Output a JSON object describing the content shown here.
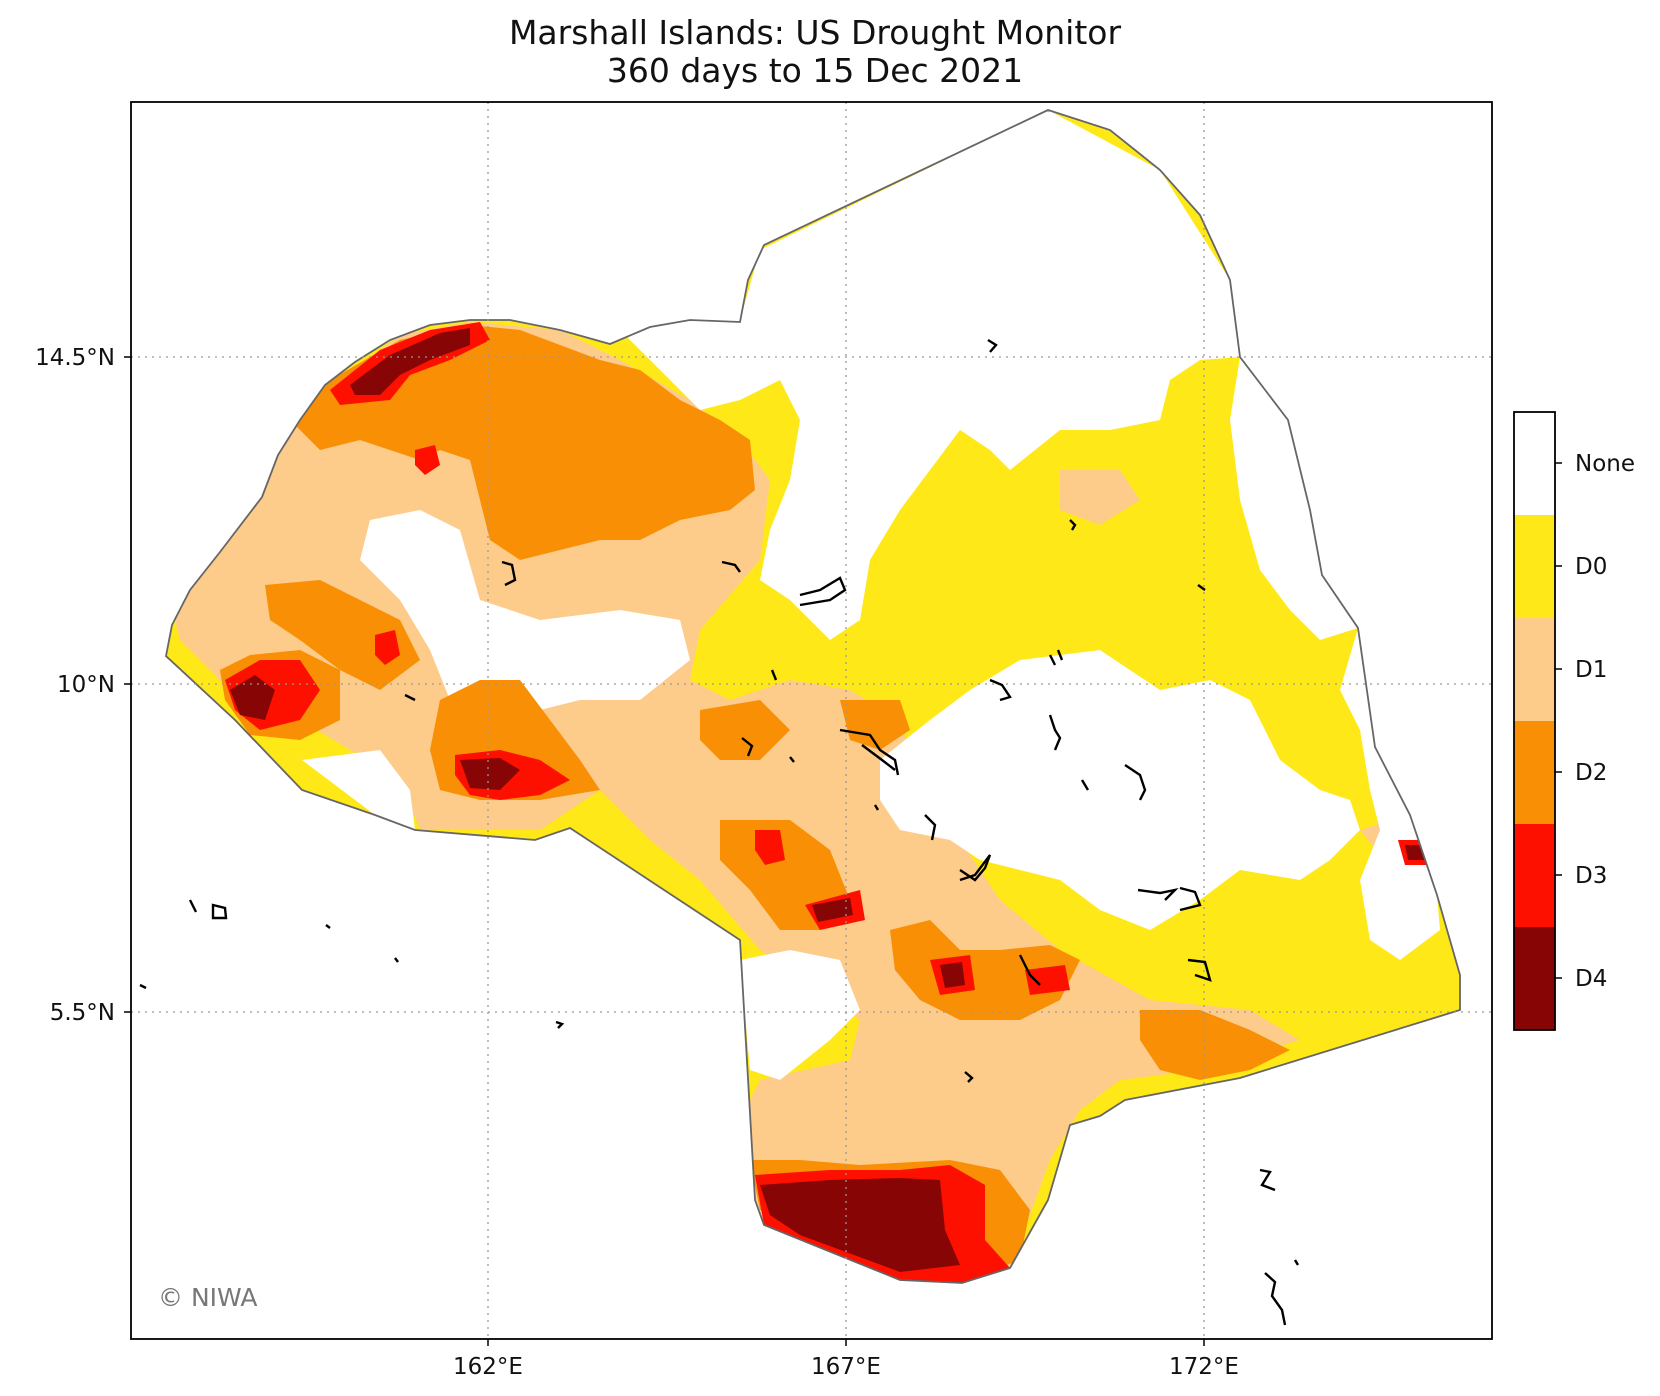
{
  "title": "Marshall Islands: US Drought Monitor",
  "subtitle": "360 days to 15 Dec 2021",
  "copyright": "© NIWA",
  "x_ticks": [
    "162°E",
    "167°E",
    "172°E"
  ],
  "y_ticks": [
    "14.5°N",
    "10°N",
    "5.5°N"
  ],
  "legend": {
    "categories": [
      {
        "label": "None",
        "color": "#ffffff"
      },
      {
        "label": "D0",
        "color": "#ffe817"
      },
      {
        "label": "D1",
        "color": "#fdcb8a"
      },
      {
        "label": "D2",
        "color": "#f88f05"
      },
      {
        "label": "D3",
        "color": "#fe1000"
      },
      {
        "label": "D4",
        "color": "#870505"
      }
    ]
  },
  "colors": {
    "eez_outline": "#666666",
    "grid": "#999999",
    "islands": "#000000"
  }
}
